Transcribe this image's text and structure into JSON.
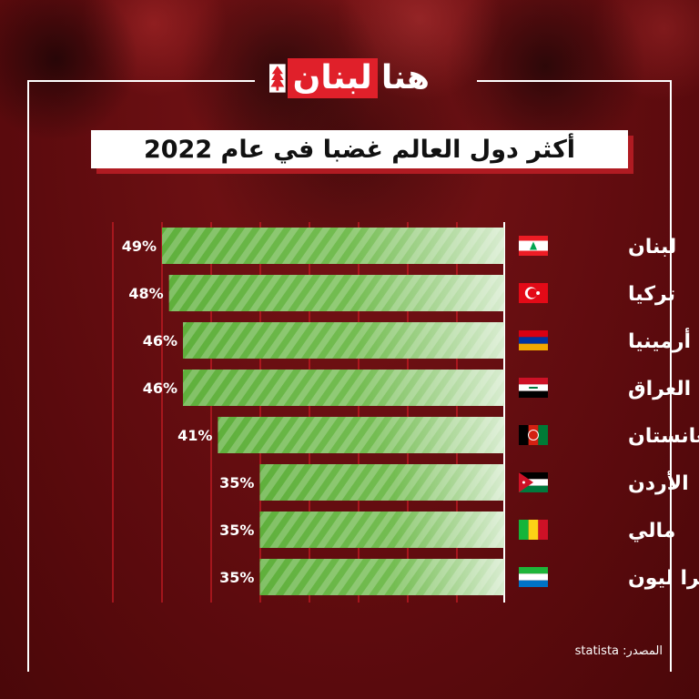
{
  "logo": {
    "part_box": "لبنان",
    "part_plain": "هنا"
  },
  "title": "أكثر دول العالم غضبا في عام 2022",
  "source": {
    "label": "المصدر:",
    "value": "statista"
  },
  "colors": {
    "bar": "#5fb03c",
    "bar_light": "#d8ecd0",
    "accent": "#e0202a",
    "background": "#6a0f12"
  },
  "chart_data": {
    "type": "bar",
    "orientation": "horizontal",
    "title": "أكثر دول العالم غضبا في عام 2022",
    "categories": [
      "لبنان",
      "تركيا",
      "أرمينيا",
      "العراق",
      "أفغانستان",
      "الأردن",
      "مالي",
      "سيرا ليون"
    ],
    "values": [
      49,
      48,
      46,
      46,
      41,
      35,
      35,
      35
    ],
    "value_labels": [
      "49%",
      "48%",
      "46%",
      "46%",
      "41%",
      "35%",
      "35%",
      "35%"
    ],
    "flags": [
      "lebanon-flag-icon",
      "turkey-flag-icon",
      "armenia-flag-icon",
      "iraq-flag-icon",
      "afghanistan-flag-icon",
      "jordan-flag-icon",
      "mali-flag-icon",
      "sierra-leone-flag-icon"
    ],
    "unit": "%",
    "xlim": [
      0,
      49
    ],
    "grid": true,
    "bars_grow_from": "right"
  }
}
